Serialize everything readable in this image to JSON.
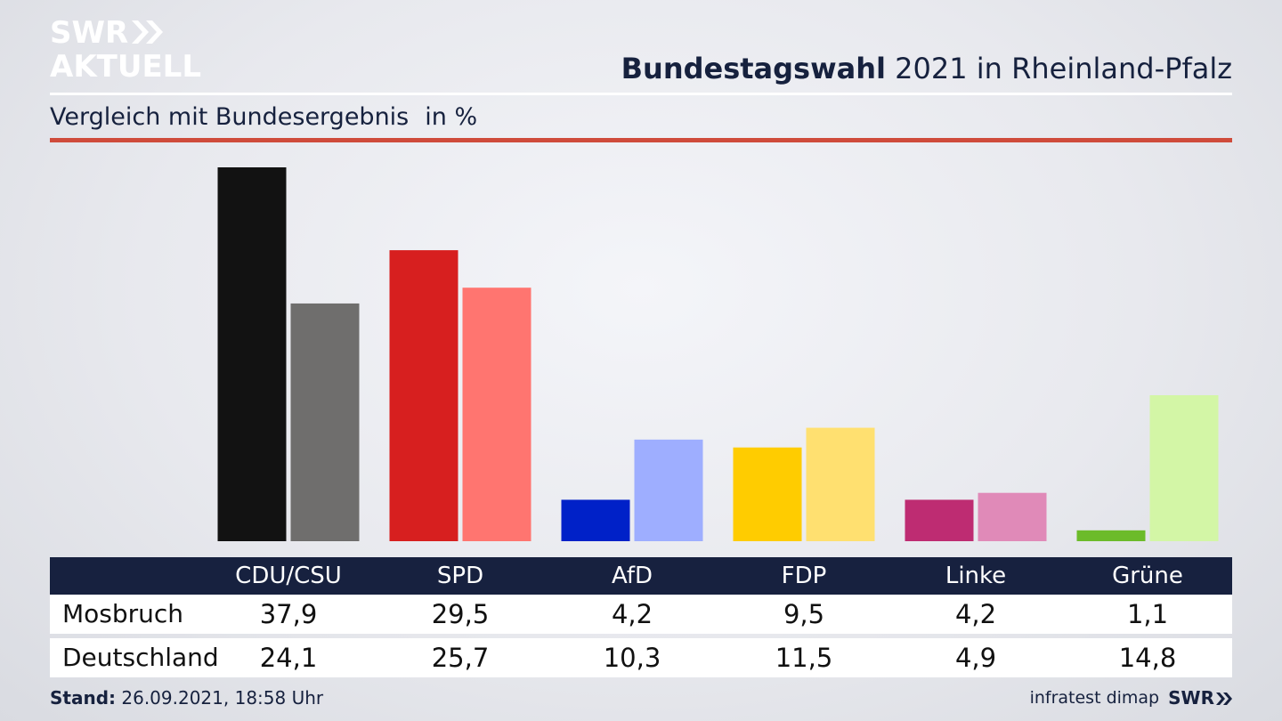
{
  "branding": {
    "logo_line1": "SWR",
    "logo_line2": "AKTUELL",
    "footer_brand": "SWR"
  },
  "header": {
    "title_bold": "Bundestagswahl",
    "title_rest": " 2021 in Rheinland-Pfalz",
    "subtitle": "Vergleich mit Bundesergebnis",
    "unit": "in %"
  },
  "footer": {
    "stand_label": "Stand:",
    "stand_value": " 26.09.2021, 18:58 Uhr",
    "source": "infratest dimap"
  },
  "colors": {
    "primary": [
      "#121212",
      "#d71f1f",
      "#0021c8",
      "#ffcc00",
      "#be2c72",
      "#6cbb2a"
    ],
    "secondary": [
      "#6f6e6d",
      "#ff7570",
      "#9eaeff",
      "#ffe070",
      "#e08ab8",
      "#d3f6a6"
    ]
  },
  "chart_data": {
    "type": "bar",
    "categories": [
      "CDU/CSU",
      "SPD",
      "AfD",
      "FDP",
      "Linke",
      "Grüne"
    ],
    "series": [
      {
        "name": "Mosbruch",
        "values": [
          37.9,
          29.5,
          4.2,
          9.5,
          4.2,
          1.1
        ],
        "display": [
          "37,9",
          "29,5",
          "4,2",
          "9,5",
          "4,2",
          "1,1"
        ]
      },
      {
        "name": "Deutschland",
        "values": [
          24.1,
          25.7,
          10.3,
          11.5,
          4.9,
          14.8
        ],
        "display": [
          "24,1",
          "25,7",
          "10,3",
          "11,5",
          "4,9",
          "14,8"
        ]
      }
    ],
    "title": "Bundestagswahl 2021 in Rheinland-Pfalz",
    "subtitle": "Vergleich mit Bundesergebnis",
    "ylabel": "in %",
    "ylim": [
      0,
      40
    ],
    "grid": false
  }
}
